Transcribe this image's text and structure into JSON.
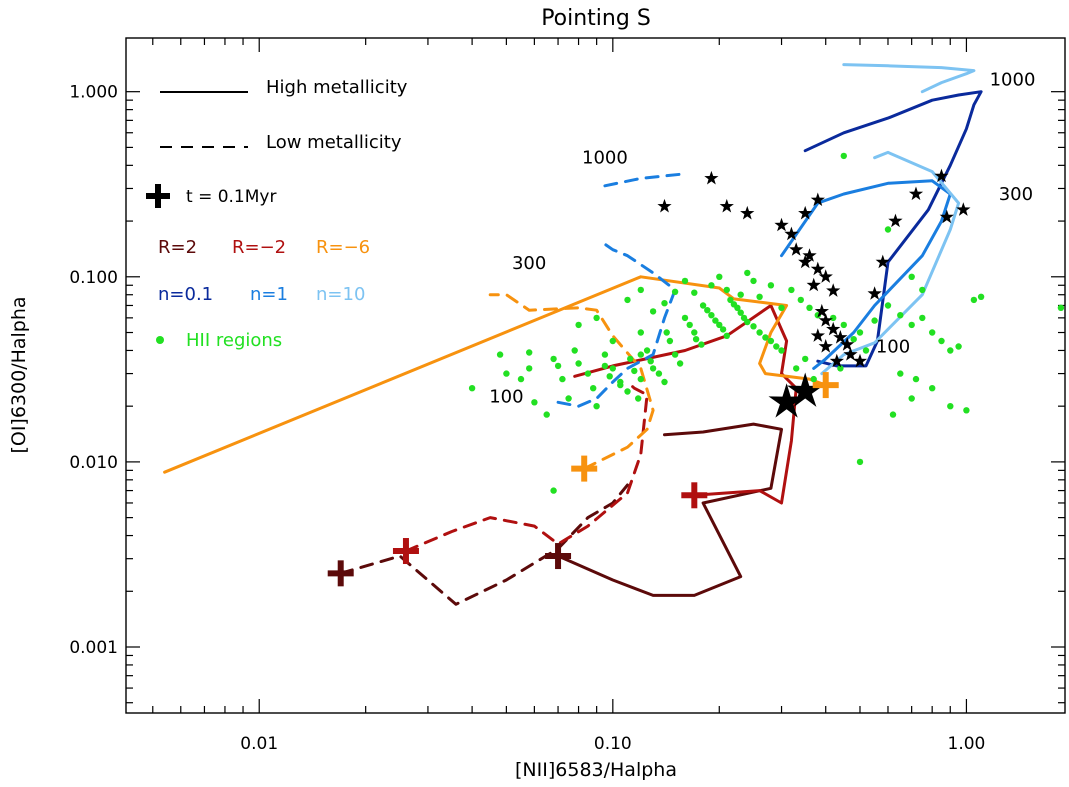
{
  "chart_data": {
    "type": "scatter",
    "title": "Pointing S",
    "xlabel": "[NII]6583/Halpha",
    "ylabel": "[OI]6300/Halpha",
    "xscale": "log",
    "yscale": "log",
    "xlim": [
      0.0042,
      1.9
    ],
    "ylim": [
      0.00044,
      1.95
    ],
    "grid": false,
    "x_ticks": [
      {
        "value": 0.01,
        "label": "0.01"
      },
      {
        "value": 0.1,
        "label": "0.10"
      },
      {
        "value": 1.0,
        "label": "1.00"
      }
    ],
    "y_ticks": [
      {
        "value": 0.001,
        "label": "0.001"
      },
      {
        "value": 0.01,
        "label": "0.010"
      },
      {
        "value": 0.1,
        "label": "0.100"
      },
      {
        "value": 1.0,
        "label": "1.000"
      }
    ],
    "legend": {
      "position": "top-left",
      "high_label": "High metallicity",
      "low_label": "Low metallicity",
      "start_label": "t = 0.1Myr",
      "r_items": [
        {
          "label": "R=2",
          "color": "#5c0a0a"
        },
        {
          "label": "R=−2",
          "color": "#b01010"
        },
        {
          "label": "R=−6",
          "color": "#f7920f"
        }
      ],
      "n_items": [
        {
          "label": "n=0.1",
          "color": "#0a2a9c"
        },
        {
          "label": "n=1",
          "color": "#1a7ee0"
        },
        {
          "label": "n=10",
          "color": "#7dc3f2"
        }
      ],
      "hii_label": "HII regions"
    },
    "annotations": [
      {
        "text": "1000",
        "x": 0.095,
        "y": 0.41
      },
      {
        "text": "300",
        "x": 0.058,
        "y": 0.11
      },
      {
        "text": "100",
        "x": 0.05,
        "y": 0.021
      },
      {
        "text": "1000",
        "x": 1.35,
        "y": 1.08
      },
      {
        "text": "300",
        "x": 1.38,
        "y": 0.26
      },
      {
        "text": "100",
        "x": 0.62,
        "y": 0.039
      }
    ],
    "series": [
      {
        "name": "R=2",
        "metallicity": "high",
        "color": "#5c0a0a",
        "points": [
          [
            0.07,
            0.0031
          ],
          [
            0.1,
            0.0023
          ],
          [
            0.13,
            0.0019
          ],
          [
            0.17,
            0.0019
          ],
          [
            0.23,
            0.0024
          ],
          [
            0.18,
            0.006
          ],
          [
            0.28,
            0.0072
          ],
          [
            0.3,
            0.015
          ],
          [
            0.25,
            0.016
          ],
          [
            0.18,
            0.0145
          ],
          [
            0.14,
            0.014
          ]
        ]
      },
      {
        "name": "R=−2",
        "metallicity": "high",
        "color": "#b01010",
        "points": [
          [
            0.17,
            0.0066
          ],
          [
            0.26,
            0.007
          ],
          [
            0.3,
            0.006
          ],
          [
            0.32,
            0.013
          ],
          [
            0.33,
            0.025
          ],
          [
            0.3,
            0.03
          ],
          [
            0.31,
            0.045
          ],
          [
            0.28,
            0.07
          ],
          [
            0.21,
            0.048
          ],
          [
            0.16,
            0.04
          ],
          [
            0.1,
            0.033
          ],
          [
            0.078,
            0.029
          ]
        ]
      },
      {
        "name": "R=−6",
        "metallicity": "high",
        "color": "#f7920f",
        "points": [
          [
            0.0054,
            0.0088
          ],
          [
            0.12,
            0.1
          ],
          [
            0.2,
            0.087
          ],
          [
            0.22,
            0.076
          ],
          [
            0.31,
            0.07
          ],
          [
            0.28,
            0.05
          ],
          [
            0.26,
            0.034
          ],
          [
            0.27,
            0.03
          ],
          [
            0.36,
            0.028
          ],
          [
            0.4,
            0.026
          ]
        ]
      },
      {
        "name": "R=2",
        "metallicity": "low",
        "color": "#5c0a0a",
        "points": [
          [
            0.017,
            0.0025
          ],
          [
            0.025,
            0.0031
          ],
          [
            0.036,
            0.0017
          ],
          [
            0.05,
            0.0023
          ],
          [
            0.07,
            0.0034
          ],
          [
            0.085,
            0.005
          ],
          [
            0.1,
            0.006
          ],
          [
            0.11,
            0.0075
          ]
        ]
      },
      {
        "name": "R=−2",
        "metallicity": "low",
        "color": "#b01010",
        "points": [
          [
            0.026,
            0.0033
          ],
          [
            0.035,
            0.0042
          ],
          [
            0.045,
            0.005
          ],
          [
            0.06,
            0.0045
          ],
          [
            0.07,
            0.0036
          ],
          [
            0.085,
            0.0045
          ],
          [
            0.11,
            0.0068
          ],
          [
            0.12,
            0.011
          ],
          [
            0.125,
            0.023
          ],
          [
            0.115,
            0.025
          ],
          [
            0.11,
            0.027
          ]
        ]
      },
      {
        "name": "R=−6",
        "metallicity": "low",
        "color": "#f7920f",
        "points": [
          [
            0.083,
            0.0092
          ],
          [
            0.11,
            0.012
          ],
          [
            0.125,
            0.015
          ],
          [
            0.13,
            0.019
          ],
          [
            0.12,
            0.032
          ],
          [
            0.1,
            0.048
          ],
          [
            0.09,
            0.066
          ],
          [
            0.08,
            0.068
          ],
          [
            0.058,
            0.066
          ],
          [
            0.05,
            0.08
          ],
          [
            0.045,
            0.08
          ]
        ]
      },
      {
        "name": "n=0.1",
        "metallicity": "high",
        "color": "#0a2a9c",
        "points": [
          [
            0.38,
            0.035
          ],
          [
            0.43,
            0.033
          ],
          [
            0.52,
            0.033
          ],
          [
            0.56,
            0.045
          ],
          [
            0.6,
            0.12
          ],
          [
            0.78,
            0.23
          ],
          [
            0.9,
            0.4
          ],
          [
            1.0,
            0.63
          ],
          [
            1.05,
            0.85
          ],
          [
            1.1,
            1.0
          ],
          [
            0.95,
            0.96
          ],
          [
            0.8,
            0.9
          ],
          [
            0.6,
            0.72
          ],
          [
            0.45,
            0.6
          ],
          [
            0.35,
            0.48
          ]
        ]
      },
      {
        "name": "n=1",
        "metallicity": "high",
        "color": "#1a7ee0",
        "points": [
          [
            0.37,
            0.032
          ],
          [
            0.4,
            0.036
          ],
          [
            0.48,
            0.05
          ],
          [
            0.55,
            0.07
          ],
          [
            0.75,
            0.13
          ],
          [
            0.85,
            0.2
          ],
          [
            0.9,
            0.28
          ],
          [
            0.8,
            0.33
          ],
          [
            0.6,
            0.32
          ],
          [
            0.45,
            0.28
          ],
          [
            0.38,
            0.25
          ],
          [
            0.3,
            0.13
          ]
        ]
      },
      {
        "name": "n=10",
        "metallicity": "high",
        "color": "#7dc3f2",
        "points": [
          [
            0.39,
            0.03
          ],
          [
            0.45,
            0.038
          ],
          [
            0.55,
            0.044
          ],
          [
            0.75,
            0.08
          ],
          [
            0.9,
            0.18
          ],
          [
            0.95,
            0.25
          ],
          [
            0.8,
            0.37
          ],
          [
            0.6,
            0.47
          ],
          [
            0.55,
            0.44
          ]
        ]
      },
      {
        "name": "n=10 upper",
        "metallicity": "high",
        "color": "#7dc3f2",
        "points": [
          [
            0.75,
            1.0
          ],
          [
            0.85,
            1.12
          ],
          [
            1.0,
            1.25
          ],
          [
            1.05,
            1.3
          ],
          [
            0.85,
            1.35
          ],
          [
            0.6,
            1.38
          ],
          [
            0.45,
            1.4
          ]
        ]
      },
      {
        "name": "n=1",
        "metallicity": "low",
        "color": "#1a7ee0",
        "points": [
          [
            0.07,
            0.021
          ],
          [
            0.08,
            0.02
          ],
          [
            0.09,
            0.022
          ],
          [
            0.1,
            0.027
          ],
          [
            0.11,
            0.032
          ],
          [
            0.13,
            0.038
          ],
          [
            0.14,
            0.06
          ],
          [
            0.15,
            0.085
          ],
          [
            0.13,
            0.105
          ],
          [
            0.11,
            0.13
          ],
          [
            0.1,
            0.14
          ],
          [
            0.095,
            0.15
          ]
        ]
      },
      {
        "name": "n=1 upper",
        "metallicity": "low",
        "color": "#1a7ee0",
        "points": [
          [
            0.095,
            0.31
          ],
          [
            0.12,
            0.34
          ],
          [
            0.16,
            0.36
          ]
        ]
      }
    ],
    "start_markers": [
      {
        "x": 0.017,
        "y": 0.0025,
        "color": "#5c0a0a"
      },
      {
        "x": 0.026,
        "y": 0.0033,
        "color": "#b01010"
      },
      {
        "x": 0.07,
        "y": 0.0031,
        "color": "#5c0a0a"
      },
      {
        "x": 0.083,
        "y": 0.0092,
        "color": "#f7920f"
      },
      {
        "x": 0.17,
        "y": 0.0066,
        "color": "#b01010"
      },
      {
        "x": 0.4,
        "y": 0.026,
        "color": "#f7920f"
      }
    ],
    "big_stars": [
      [
        0.31,
        0.021
      ],
      [
        0.35,
        0.024
      ]
    ],
    "small_stars": [
      [
        0.14,
        0.24
      ],
      [
        0.19,
        0.34
      ],
      [
        0.21,
        0.24
      ],
      [
        0.24,
        0.22
      ],
      [
        0.3,
        0.19
      ],
      [
        0.32,
        0.17
      ],
      [
        0.33,
        0.14
      ],
      [
        0.35,
        0.12
      ],
      [
        0.36,
        0.13
      ],
      [
        0.38,
        0.11
      ],
      [
        0.4,
        0.1
      ],
      [
        0.37,
        0.09
      ],
      [
        0.42,
        0.084
      ],
      [
        0.39,
        0.065
      ],
      [
        0.4,
        0.058
      ],
      [
        0.42,
        0.052
      ],
      [
        0.44,
        0.047
      ],
      [
        0.46,
        0.043
      ],
      [
        0.38,
        0.048
      ],
      [
        0.4,
        0.042
      ],
      [
        0.43,
        0.035
      ],
      [
        0.47,
        0.038
      ],
      [
        0.5,
        0.035
      ],
      [
        0.55,
        0.081
      ],
      [
        0.58,
        0.12
      ],
      [
        0.63,
        0.2
      ],
      [
        0.72,
        0.28
      ],
      [
        0.88,
        0.21
      ],
      [
        0.98,
        0.23
      ],
      [
        0.85,
        0.35
      ],
      [
        0.35,
        0.22
      ],
      [
        0.38,
        0.26
      ]
    ],
    "hii_regions": [
      [
        0.04,
        0.025
      ],
      [
        0.048,
        0.038
      ],
      [
        0.05,
        0.03
      ],
      [
        0.055,
        0.028
      ],
      [
        0.058,
        0.039
      ],
      [
        0.06,
        0.021
      ],
      [
        0.065,
        0.018
      ],
      [
        0.07,
        0.033
      ],
      [
        0.072,
        0.028
      ],
      [
        0.075,
        0.022
      ],
      [
        0.078,
        0.04
      ],
      [
        0.08,
        0.034
      ],
      [
        0.085,
        0.03
      ],
      [
        0.088,
        0.025
      ],
      [
        0.09,
        0.02
      ],
      [
        0.095,
        0.038
      ],
      [
        0.098,
        0.029
      ],
      [
        0.1,
        0.032
      ],
      [
        0.105,
        0.027
      ],
      [
        0.11,
        0.024
      ],
      [
        0.112,
        0.036
      ],
      [
        0.115,
        0.031
      ],
      [
        0.118,
        0.022
      ],
      [
        0.12,
        0.028
      ],
      [
        0.125,
        0.04
      ],
      [
        0.128,
        0.035
      ],
      [
        0.13,
        0.032
      ],
      [
        0.135,
        0.03
      ],
      [
        0.14,
        0.027
      ],
      [
        0.142,
        0.05
      ],
      [
        0.145,
        0.045
      ],
      [
        0.15,
        0.038
      ],
      [
        0.155,
        0.034
      ],
      [
        0.16,
        0.06
      ],
      [
        0.165,
        0.055
      ],
      [
        0.17,
        0.05
      ],
      [
        0.172,
        0.046
      ],
      [
        0.178,
        0.043
      ],
      [
        0.18,
        0.07
      ],
      [
        0.185,
        0.066
      ],
      [
        0.19,
        0.062
      ],
      [
        0.195,
        0.058
      ],
      [
        0.2,
        0.055
      ],
      [
        0.205,
        0.052
      ],
      [
        0.21,
        0.048
      ],
      [
        0.215,
        0.075
      ],
      [
        0.22,
        0.071
      ],
      [
        0.225,
        0.068
      ],
      [
        0.23,
        0.064
      ],
      [
        0.235,
        0.06
      ],
      [
        0.24,
        0.057
      ],
      [
        0.25,
        0.054
      ],
      [
        0.26,
        0.05
      ],
      [
        0.27,
        0.047
      ],
      [
        0.28,
        0.045
      ],
      [
        0.29,
        0.042
      ],
      [
        0.3,
        0.04
      ],
      [
        0.15,
        0.083
      ],
      [
        0.17,
        0.082
      ],
      [
        0.19,
        0.09
      ],
      [
        0.21,
        0.085
      ],
      [
        0.23,
        0.08
      ],
      [
        0.1,
        0.045
      ],
      [
        0.12,
        0.05
      ],
      [
        0.13,
        0.065
      ],
      [
        0.14,
        0.072
      ],
      [
        0.09,
        0.06
      ],
      [
        0.08,
        0.055
      ],
      [
        0.11,
        0.075
      ],
      [
        0.12,
        0.085
      ],
      [
        0.16,
        0.095
      ],
      [
        0.2,
        0.1
      ],
      [
        0.24,
        0.105
      ],
      [
        0.28,
        0.09
      ],
      [
        0.32,
        0.085
      ],
      [
        0.34,
        0.075
      ],
      [
        0.36,
        0.068
      ],
      [
        0.38,
        0.062
      ],
      [
        0.42,
        0.06
      ],
      [
        0.45,
        0.055
      ],
      [
        0.5,
        0.05
      ],
      [
        0.55,
        0.058
      ],
      [
        0.6,
        0.07
      ],
      [
        0.65,
        0.062
      ],
      [
        0.7,
        0.055
      ],
      [
        0.75,
        0.06
      ],
      [
        0.8,
        0.05
      ],
      [
        0.85,
        0.045
      ],
      [
        0.9,
        0.04
      ],
      [
        0.95,
        0.042
      ],
      [
        1.05,
        0.075
      ],
      [
        1.1,
        0.078
      ],
      [
        1.85,
        0.068
      ],
      [
        0.45,
        0.45
      ],
      [
        0.6,
        0.18
      ],
      [
        0.7,
        0.1
      ],
      [
        0.75,
        0.085
      ],
      [
        0.65,
        0.03
      ],
      [
        0.7,
        0.022
      ],
      [
        0.72,
        0.028
      ],
      [
        0.8,
        0.025
      ],
      [
        0.9,
        0.02
      ],
      [
        1.0,
        0.019
      ],
      [
        0.62,
        0.018
      ],
      [
        0.5,
        0.01
      ],
      [
        0.068,
        0.007
      ],
      [
        0.33,
        0.032
      ],
      [
        0.35,
        0.036
      ],
      [
        0.37,
        0.028
      ],
      [
        0.44,
        0.032
      ],
      [
        0.48,
        0.046
      ],
      [
        0.52,
        0.04
      ],
      [
        0.26,
        0.078
      ],
      [
        0.3,
        0.068
      ],
      [
        0.25,
        0.095
      ],
      [
        0.12,
        0.038
      ],
      [
        0.105,
        0.026
      ],
      [
        0.095,
        0.033
      ],
      [
        0.058,
        0.032
      ],
      [
        0.068,
        0.036
      ]
    ]
  }
}
